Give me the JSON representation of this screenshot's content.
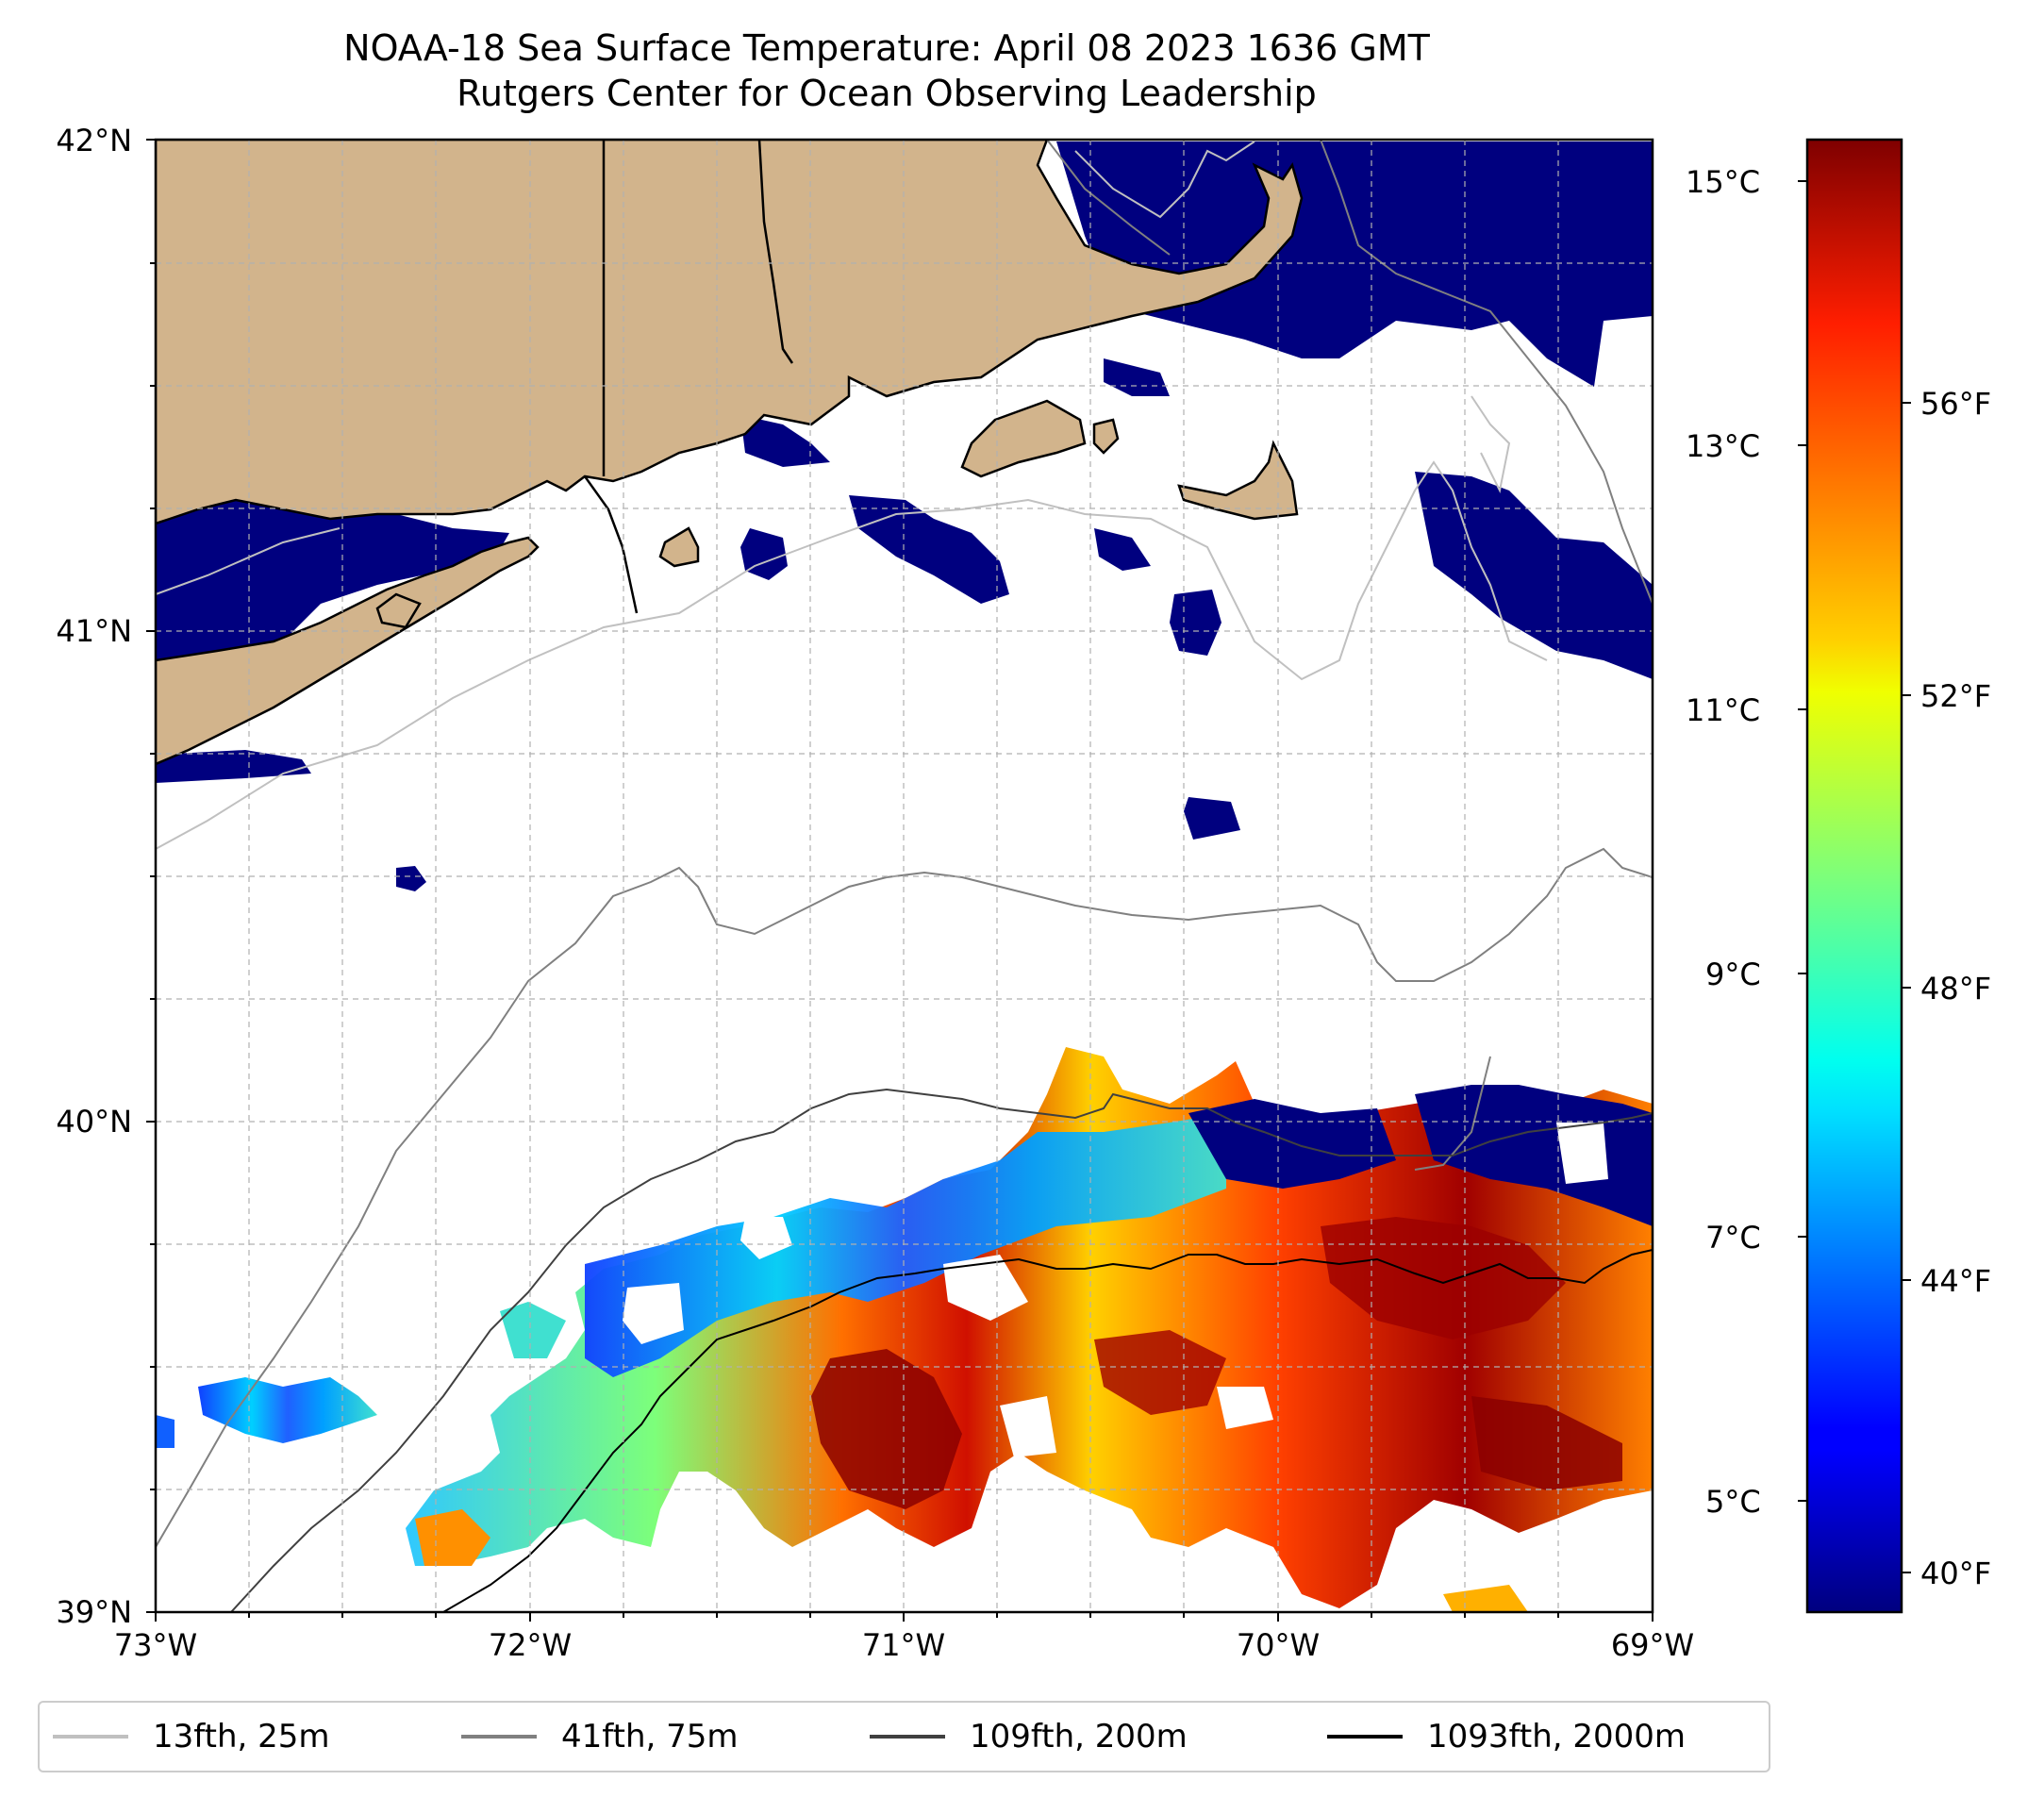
{
  "title": {
    "line1": "NOAA-18 Sea Surface Temperature: April 08 2023 1636 GMT",
    "line2": "Rutgers Center for Ocean Observing Leadership"
  },
  "axes": {
    "lat_labels": [
      "42°N",
      "41°N",
      "40°N",
      "39°N"
    ],
    "lon_labels": [
      "73°W",
      "72°W",
      "71°W",
      "70°W",
      "69°W"
    ],
    "lat_range": [
      39,
      42
    ],
    "lon_range": [
      -73,
      -69
    ]
  },
  "colorbar": {
    "celsius_labels": [
      "15°C",
      "13°C",
      "11°C",
      "9°C",
      "7°C",
      "5°C"
    ],
    "fahrenheit_labels": [
      "56°F",
      "52°F",
      "48°F",
      "44°F",
      "40°F"
    ],
    "colormap": "jet",
    "range_c": [
      4.4,
      15.3
    ]
  },
  "legend": {
    "items": [
      {
        "label": "13fth, 25m",
        "color": "#c0c0c0"
      },
      {
        "label": "41fth, 75m",
        "color": "#808080"
      },
      {
        "label": "109fth, 200m",
        "color": "#404040"
      },
      {
        "label": "1093fth, 2000m",
        "color": "#000000"
      }
    ]
  },
  "colors": {
    "land": "#d2b48c",
    "cold_water": "#00007f",
    "grid": "#b0b0b0"
  }
}
